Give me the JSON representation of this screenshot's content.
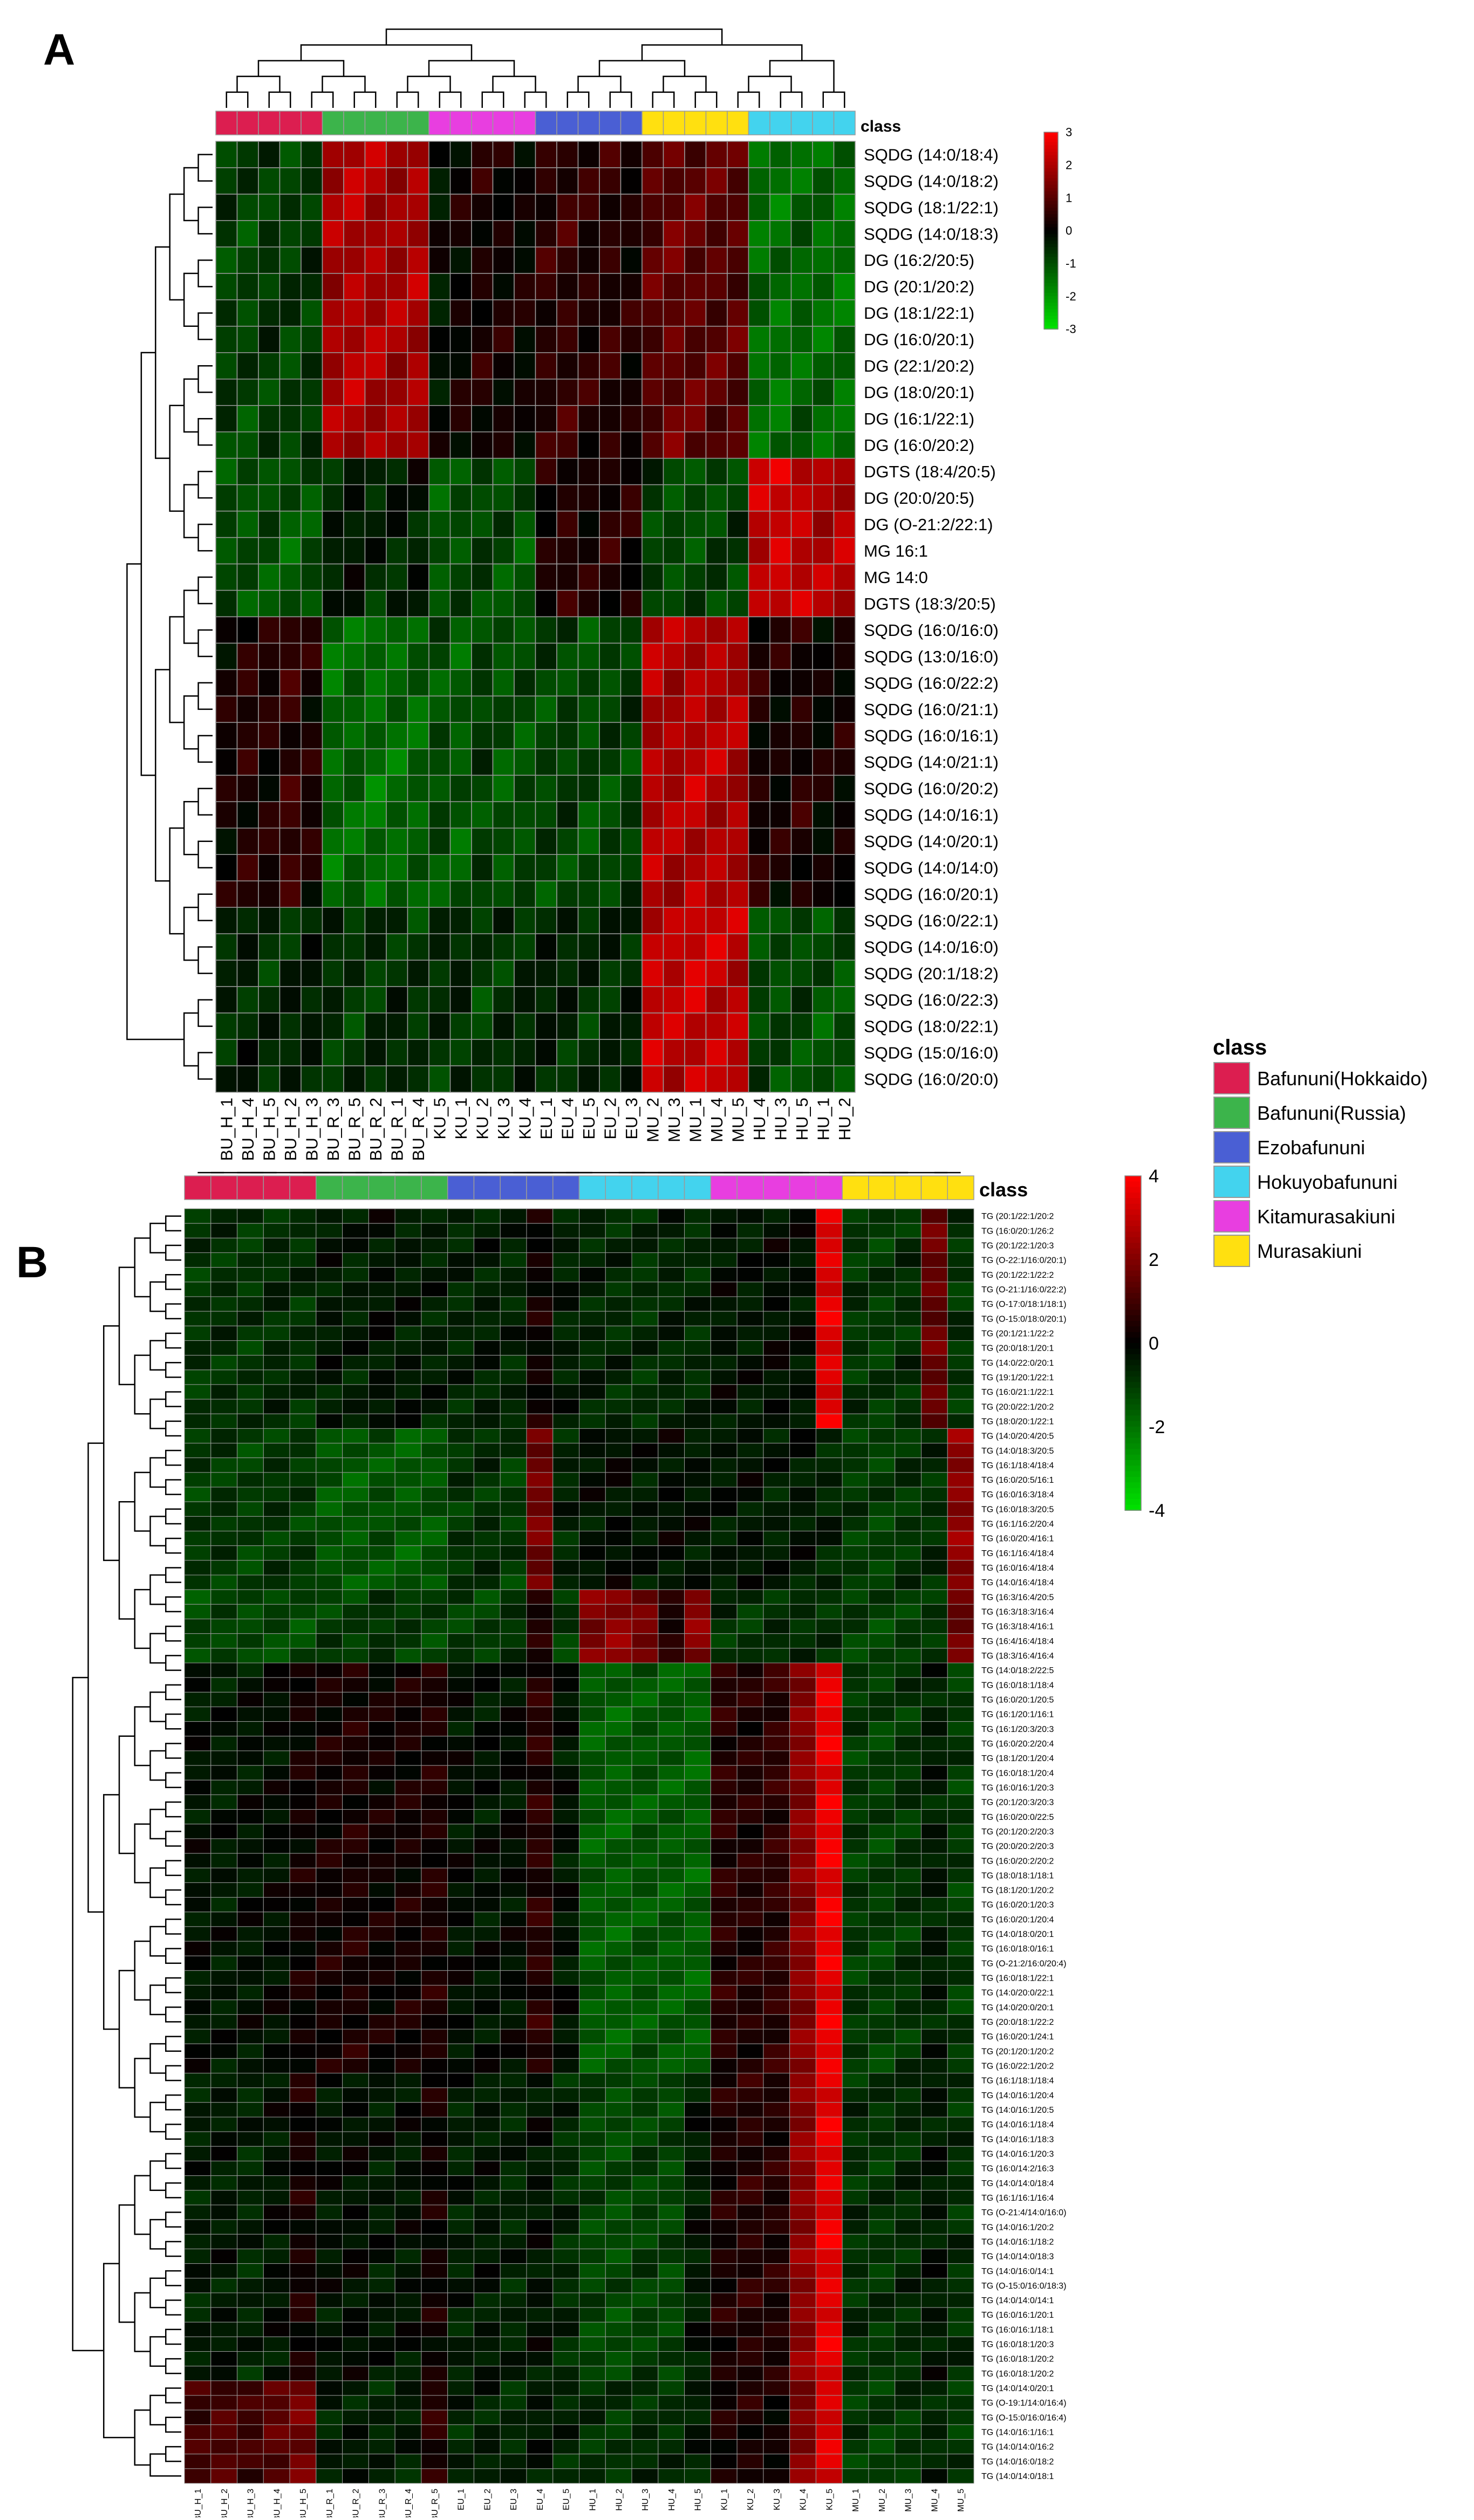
{
  "colors": {
    "low": "#00e000",
    "mid": "#000000",
    "high": "#ff0000",
    "grid": "#9a9a9a",
    "dendrogram": "#000000"
  },
  "legend": {
    "title": "class",
    "entries": [
      {
        "label": "Bafununi(Hokkaido)",
        "color": "#dc1e50"
      },
      {
        "label": "Bafununi(Russia)",
        "color": "#3cb44b"
      },
      {
        "label": "Ezobafununi",
        "color": "#4a5fd4"
      },
      {
        "label": "Hokuyobafununi",
        "color": "#43d3ee"
      },
      {
        "label": "Kitamurasakiuni",
        "color": "#e83ee0"
      },
      {
        "label": "Murasakiuni",
        "color": "#ffe010"
      }
    ]
  },
  "chart_data": [
    {
      "type": "heatmap",
      "panel_label": "A",
      "annotation_label": "class",
      "color_scale": {
        "min": -3,
        "max": 3,
        "ticks": [
          "3",
          "2",
          "1",
          "0",
          "-1",
          "-2",
          "-3"
        ]
      },
      "columns": [
        "BU_H_1",
        "BU_H_4",
        "BU_H_5",
        "BU_H_2",
        "BU_H_3",
        "BU_R_3",
        "BU_R_5",
        "BU_R_2",
        "BU_R_1",
        "BU_R_4",
        "KU_5",
        "KU_1",
        "KU_2",
        "KU_3",
        "KU_4",
        "EU_1",
        "EU_4",
        "EU_5",
        "EU_2",
        "EU_3",
        "MU_2",
        "MU_3",
        "MU_1",
        "MU_4",
        "MU_5",
        "HU_4",
        "HU_3",
        "HU_5",
        "HU_1",
        "HU_2"
      ],
      "column_classes": [
        0,
        0,
        0,
        0,
        0,
        1,
        1,
        1,
        1,
        1,
        4,
        4,
        4,
        4,
        4,
        2,
        2,
        2,
        2,
        2,
        5,
        5,
        5,
        5,
        5,
        3,
        3,
        3,
        3,
        3
      ],
      "rows": [
        "SQDG (14:0/18:4)",
        "SQDG (14:0/18:2)",
        "SQDG (18:1/22:1)",
        "SQDG (14:0/18:3)",
        "DG (16:2/20:5)",
        "DG (20:1/20:2)",
        "DG (18:1/22:1)",
        "DG (16:0/20:1)",
        "DG (22:1/20:2)",
        "DG (18:0/20:1)",
        "DG (16:1/22:1)",
        "DG (16:0/20:2)",
        "DGTS (18:4/20:5)",
        "DG (20:0/20:5)",
        "DG (O-21:2/22:1)",
        "MG 16:1",
        "MG 14:0",
        "DGTS (18:3/20:5)",
        "SQDG (16:0/16:0)",
        "SQDG (13:0/16:0)",
        "SQDG (16:0/22:2)",
        "SQDG (16:0/21:1)",
        "SQDG (16:0/16:1)",
        "SQDG (14:0/21:1)",
        "SQDG (16:0/20:2)",
        "SQDG (14:0/16:1)",
        "SQDG (14:0/20:1)",
        "SQDG (14:0/14:0)",
        "SQDG (16:0/20:1)",
        "SQDG (16:0/22:1)",
        "SQDG (14:0/16:0)",
        "SQDG (20:1/18:2)",
        "SQDG (16:0/22:3)",
        "SQDG (18:0/22:1)",
        "SQDG (15:0/16:0)",
        "SQDG (16:0/20:0)"
      ],
      "row_groups": [
        "G1",
        "G1",
        "G1",
        "G1",
        "G1",
        "G1",
        "G1",
        "G1",
        "G1",
        "G1",
        "G1",
        "G1",
        "G2",
        "G2",
        "G2",
        "G2",
        "G2",
        "G2",
        "G3",
        "G3",
        "G3",
        "G3",
        "G3",
        "G3",
        "G3",
        "G3",
        "G3",
        "G3",
        "G3",
        "G4",
        "G4",
        "G4",
        "G4",
        "G4",
        "G4",
        "G4"
      ],
      "group_values": {
        "G1": [
          -0.8,
          -0.9,
          -0.7,
          -0.8,
          -0.7,
          1.9,
          2.1,
          2.0,
          1.9,
          2.0,
          -0.2,
          0.1,
          0.3,
          0.2,
          0.1,
          0.5,
          0.6,
          0.4,
          0.5,
          0.3,
          1.0,
          1.2,
          1.1,
          1.0,
          1.0,
          -1.4,
          -1.5,
          -1.3,
          -1.4,
          -1.5
        ],
        "G2": [
          -1.0,
          -1.1,
          -1.0,
          -1.2,
          -1.0,
          -0.4,
          -0.3,
          -0.5,
          -0.4,
          -0.3,
          -1.1,
          -1.0,
          -0.9,
          -1.0,
          -1.1,
          0.3,
          0.5,
          0.2,
          0.4,
          0.3,
          -0.8,
          -0.9,
          -1.0,
          -0.9,
          -0.8,
          2.2,
          2.5,
          2.3,
          2.0,
          2.1
        ],
        "G3": [
          0.2,
          0.4,
          0.3,
          0.6,
          0.3,
          -1.4,
          -1.3,
          -1.5,
          -1.4,
          -1.3,
          -1.0,
          -1.2,
          -0.8,
          -1.1,
          -1.0,
          -0.9,
          -0.8,
          -1.0,
          -0.9,
          -0.8,
          2.1,
          2.0,
          2.2,
          2.1,
          2.0,
          0.3,
          0.2,
          0.4,
          0.1,
          0.2
        ],
        "G4": [
          -0.5,
          -0.4,
          -0.6,
          -0.5,
          -0.4,
          -0.6,
          -0.7,
          -0.6,
          -0.5,
          -0.7,
          -0.6,
          -0.5,
          -0.8,
          -0.6,
          -0.5,
          -0.4,
          -0.5,
          -0.6,
          -0.5,
          -0.4,
          2.3,
          2.2,
          2.4,
          2.3,
          2.2,
          -0.9,
          -1.0,
          -0.9,
          -1.1,
          -1.0
        ]
      }
    },
    {
      "type": "heatmap",
      "panel_label": "B",
      "annotation_label": "class",
      "color_scale": {
        "min": -4,
        "max": 4,
        "ticks": [
          "4",
          "2",
          "0",
          "-2",
          "-4"
        ]
      },
      "columns": [
        "BU_H_1",
        "BU_H_2",
        "BU_H_3",
        "BU_H_4",
        "BU_H_5",
        "BU_R_1",
        "BU_R_2",
        "BU_R_3",
        "BU_R_4",
        "BU_R_5",
        "EU_1",
        "EU_2",
        "EU_3",
        "EU_4",
        "EU_5",
        "HU_1",
        "HU_2",
        "HU_3",
        "HU_4",
        "HU_5",
        "KU_1",
        "KU_2",
        "KU_3",
        "KU_4",
        "KU_5",
        "MU_1",
        "MU_2",
        "MU_3",
        "MU_4",
        "MU_5"
      ],
      "column_classes": [
        0,
        0,
        0,
        0,
        0,
        1,
        1,
        1,
        1,
        1,
        2,
        2,
        2,
        2,
        2,
        3,
        3,
        3,
        3,
        3,
        4,
        4,
        4,
        4,
        4,
        5,
        5,
        5,
        5,
        5
      ],
      "rows": [
        "TG (20:1/22:1/20:2",
        "TG (16:0/20:1/26:2",
        "TG (20:1/22:1/20:3",
        "TG (O-22:1/16:0/20:1)",
        "TG (20:1/22:1/22:2",
        "TG (O-21:1/16:0/22:2)",
        "TG (O-17:0/18:1/18:1)",
        "TG (O-15:0/18:0/20:1)",
        "TG (20:1/21:1/22:2",
        "TG (20:0/18:1/20:1",
        "TG (14:0/22:0/20:1",
        "TG (19:1/20:1/22:1",
        "TG (16:0/21:1/22:1",
        "TG (20:0/22:1/20:2",
        "TG (18:0/20:1/22:1",
        "TG (14:0/20:4/20:5",
        "TG (14:0/18:3/20:5",
        "TG (16:1/18:4/18:4",
        "TG (16:0/20:5/16:1",
        "TG (16:0/16:3/18:4",
        "TG (16:0/18:3/20:5",
        "TG (16:1/16:2/20:4",
        "TG (16:0/20:4/16:1",
        "TG (16:1/16:4/18:4",
        "TG (16:0/16:4/18:4",
        "TG (14:0/16:4/18:4",
        "TG (16:3/16:4/20:5",
        "TG (16:3/18:3/16:4",
        "TG (16:3/18:4/16:1",
        "TG (16:4/16:4/18:4",
        "TG (18:3/16:4/16:4",
        "TG (14:0/18:2/22:5",
        "TG (16:0/18:1/18:4",
        "TG (16:0/20:1/20:5",
        "TG (16:1/20:1/16:1",
        "TG (16:1/20:3/20:3",
        "TG (16:0/20:2/20:4",
        "TG (18:1/20:1/20:4",
        "TG (16:0/18:1/20:4",
        "TG (16:0/16:1/20:3",
        "TG (20:1/20:3/20:3",
        "TG (16:0/20:0/22:5",
        "TG (20:1/20:2/20:3",
        "TG (20:0/20:2/20:3",
        "TG (16:0/20:2/20:2",
        "TG (18:0/18:1/18:1",
        "TG (18:1/20:1/20:2",
        "TG (16:0/20:1/20:3",
        "TG (16:0/20:1/20:4",
        "TG (14:0/18:0/20:1",
        "TG (16:0/18:0/16:1",
        "TG (O-21:2/16:0/20:4)",
        "TG (16:0/18:1/22:1",
        "TG (14:0/20:0/22:1",
        "TG (14:0/20:0/20:1",
        "TG (20:0/18:1/22:2",
        "TG (16:0/20:1/24:1",
        "TG (20:1/20:1/20:2",
        "TG (16:0/22:1/20:2",
        "TG (16:1/18:1/18:4",
        "TG (14:0/16:1/20:4",
        "TG (14:0/16:1/20:5",
        "TG (14:0/16:1/18:4",
        "TG (14:0/16:1/18:3",
        "TG (14:0/16:1/20:3",
        "TG (16:0/14:2/16:3",
        "TG (14:0/14:0/18:4",
        "TG (16:1/16:1/16:4",
        "TG (O-21:4/14:0/16:0)",
        "TG (14:0/16:1/20:2",
        "TG (14:0/16:1/18:2",
        "TG (14:0/14:0/18:3",
        "TG (14:0/16:0/14:1",
        "TG (O-15:0/16:0/18:3)",
        "TG (14:0/14:0/14:1",
        "TG (16:0/16:1/20:1",
        "TG (16:0/16:1/18:1",
        "TG (16:0/18:1/20:3",
        "TG (16:0/18:1/20:2",
        "TG (16:0/18:1/20:2",
        "TG (14:0/14:0/20:1",
        "TG (O-19:1/14:0/16:4)",
        "TG (O-15:0/16:0/16:4)",
        "TG (14:0/16:1/16:1",
        "TG (14:0/14:0/16:2",
        "TG (14:0/16:0/18:2",
        "TG (14:0/14:0/18:1"
      ],
      "row_groups": [
        "P1",
        "P1",
        "P1",
        "P1",
        "P1",
        "P1",
        "P1",
        "P1",
        "P1",
        "P1",
        "P1",
        "P1",
        "P1",
        "P1",
        "P1",
        "P2",
        "P2",
        "P2",
        "P2",
        "P2",
        "P2",
        "P2",
        "P2",
        "P2",
        "P2",
        "P2",
        "P3",
        "P3",
        "P3",
        "P3",
        "P3",
        "P4",
        "P4",
        "P4",
        "P4",
        "P4",
        "P4",
        "P4",
        "P4",
        "P4",
        "P4",
        "P4",
        "P4",
        "P4",
        "P4",
        "P4",
        "P4",
        "P4",
        "P4",
        "P4",
        "P4",
        "P4",
        "P4",
        "P4",
        "P4",
        "P4",
        "P4",
        "P4",
        "P4",
        "P5",
        "P5",
        "P5",
        "P5",
        "P5",
        "P5",
        "P5",
        "P5",
        "P5",
        "P5",
        "P5",
        "P5",
        "P5",
        "P5",
        "P5",
        "P5",
        "P5",
        "P5",
        "P5",
        "P5",
        "P5",
        "P6",
        "P6",
        "P6",
        "P6",
        "P6",
        "P6",
        "P6"
      ],
      "group_values": {
        "P1": [
          -0.9,
          -0.8,
          -0.9,
          -0.7,
          -0.8,
          -0.4,
          -0.5,
          -0.3,
          -0.4,
          -0.5,
          -0.6,
          -0.5,
          -0.6,
          0.2,
          -0.5,
          -0.6,
          -0.7,
          -0.8,
          -0.6,
          -0.7,
          -0.3,
          -0.4,
          -0.2,
          -0.3,
          3.5,
          -0.9,
          -1.0,
          -0.8,
          1.6,
          -0.9
        ],
        "P2": [
          -1.0,
          -0.9,
          -1.1,
          -0.9,
          -1.0,
          -1.5,
          -1.6,
          -1.4,
          -1.6,
          -1.5,
          -0.9,
          -0.8,
          -1.0,
          1.8,
          -0.6,
          -0.3,
          -0.2,
          -0.4,
          -0.2,
          -0.3,
          -0.4,
          -0.3,
          -0.5,
          -0.4,
          -0.6,
          -1.0,
          -1.1,
          -0.9,
          -0.8,
          2.2
        ],
        "P3": [
          -1.3,
          -1.2,
          -1.3,
          -1.2,
          -1.3,
          -1.0,
          -1.1,
          -0.9,
          -1.0,
          -1.1,
          -1.0,
          -1.1,
          -0.9,
          0.4,
          -1.0,
          2.0,
          2.3,
          1.8,
          0.4,
          2.1,
          -0.8,
          -0.9,
          -0.7,
          -0.8,
          -0.9,
          -1.1,
          -1.2,
          -1.0,
          -0.9,
          1.6
        ],
        "P4": [
          -0.3,
          -0.4,
          -0.3,
          -0.2,
          0.2,
          0.3,
          0.4,
          0.2,
          0.3,
          0.4,
          -0.2,
          -0.3,
          -0.2,
          0.6,
          -0.3,
          -1.6,
          -1.7,
          -1.5,
          -1.6,
          -1.7,
          0.6,
          0.5,
          0.7,
          2.1,
          3.7,
          -1.0,
          -1.1,
          -0.9,
          -0.5,
          -1.0
        ],
        "P5": [
          -0.5,
          -0.4,
          -0.6,
          -0.3,
          0.3,
          -0.3,
          -0.2,
          -0.4,
          -0.3,
          0.2,
          -0.5,
          -0.4,
          -0.6,
          -0.3,
          -0.7,
          -1.2,
          -1.3,
          -1.1,
          -1.2,
          -0.4,
          0.4,
          0.6,
          0.5,
          2.2,
          3.6,
          -0.8,
          -0.9,
          -0.7,
          -0.4,
          -0.8
        ],
        "P6": [
          1.0,
          1.2,
          0.9,
          1.4,
          1.8,
          -0.5,
          -0.4,
          -0.6,
          -0.5,
          0.6,
          -0.6,
          -0.5,
          -0.7,
          -0.4,
          -0.6,
          -0.8,
          -0.9,
          -0.7,
          -0.8,
          -0.5,
          0.3,
          0.4,
          0.2,
          2.0,
          3.4,
          -1.0,
          -1.1,
          -0.9,
          -0.6,
          -1.0
        ]
      }
    }
  ]
}
